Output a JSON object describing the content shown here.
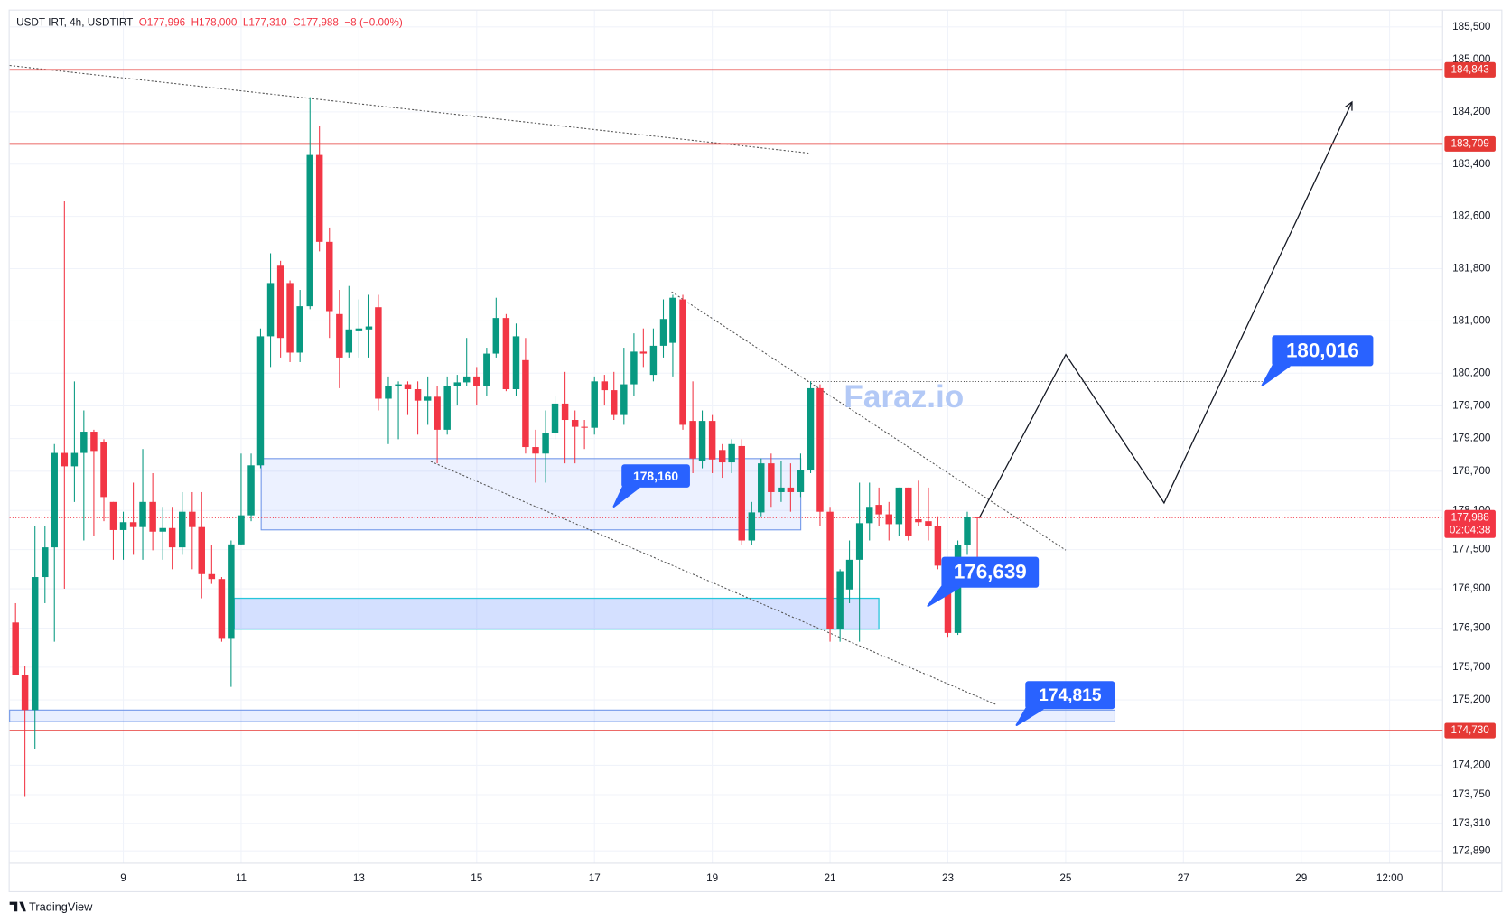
{
  "chart_data": {
    "type": "candlestick",
    "header": {
      "symbol": "USDT-IRT, 4h, USDTIRT",
      "values": [
        {
          "value": 177996,
          "label": "O177,996"
        },
        {
          "value": 178000,
          "label": "H178,000"
        },
        {
          "value": 177310,
          "label": "L177,310"
        },
        {
          "value": 177988,
          "label": "C177,988"
        }
      ],
      "change": {
        "value": -8,
        "label": "−8 (−0.00%)"
      }
    },
    "watermark": "Faraz.io",
    "brand": "TradingView",
    "up_color": "#089981",
    "down_color": "#f23645",
    "grid": true,
    "xlim": [
      7.07,
      31.4
    ],
    "xticks": [
      9,
      11,
      13,
      15,
      17,
      19,
      21,
      23,
      25,
      27,
      29,
      {
        "value": 30.5,
        "label": "12:00"
      }
    ],
    "ylim": [
      172700,
      185750
    ],
    "yticks": [
      {
        "value": 185500,
        "label": "185,500"
      },
      {
        "value": 185000,
        "label": "185,000"
      },
      {
        "value": 184200,
        "label": "184,200"
      },
      {
        "value": 183400,
        "label": "183,400"
      },
      {
        "value": 182600,
        "label": "182,600"
      },
      {
        "value": 181800,
        "label": "181,800"
      },
      {
        "value": 181000,
        "label": "181,000"
      },
      {
        "value": 180200,
        "label": "180,200"
      },
      {
        "value": 179700,
        "label": "179,700"
      },
      {
        "value": 179200,
        "label": "179,200"
      },
      {
        "value": 178700,
        "label": "178,700"
      },
      {
        "value": 178100,
        "label": "178,100"
      },
      {
        "value": 177500,
        "label": "177,500"
      },
      {
        "value": 176900,
        "label": "176,900"
      },
      {
        "value": 176300,
        "label": "176,300"
      },
      {
        "value": 175700,
        "label": "175,700"
      },
      {
        "value": 175200,
        "label": "175,200"
      },
      {
        "value": 174200,
        "label": "174,200"
      },
      {
        "value": 173750,
        "label": "173,750"
      },
      {
        "value": 173310,
        "label": "173,310"
      },
      {
        "value": 172890,
        "label": "172,890"
      }
    ],
    "x": [
      7.17,
      7.33,
      7.5,
      7.67,
      7.83,
      8,
      8.17,
      8.33,
      8.5,
      8.67,
      8.83,
      9,
      9.17,
      9.33,
      9.5,
      9.67,
      9.83,
      10,
      10.17,
      10.33,
      10.5,
      10.67,
      10.83,
      11,
      11.17,
      11.33,
      11.5,
      11.67,
      11.83,
      12,
      12.17,
      12.33,
      12.5,
      12.67,
      12.83,
      13,
      13.17,
      13.33,
      13.5,
      13.67,
      13.83,
      14,
      14.17,
      14.33,
      14.5,
      14.67,
      14.83,
      15,
      15.17,
      15.33,
      15.5,
      15.67,
      15.83,
      16,
      16.17,
      16.33,
      16.5,
      16.67,
      16.83,
      17,
      17.17,
      17.33,
      17.5,
      17.67,
      17.83,
      18,
      18.17,
      18.33,
      18.5,
      18.67,
      18.83,
      19,
      19.17,
      19.33,
      19.5,
      19.67,
      19.83,
      20,
      20.17,
      20.33,
      20.5,
      20.67,
      20.83,
      21,
      21.17,
      21.33,
      21.5,
      21.67,
      21.83,
      22,
      22.17,
      22.33,
      22.5,
      22.67,
      22.83,
      23,
      23.17,
      23.33,
      23.5
    ],
    "open": [
      176385,
      175575,
      175045,
      177080,
      177535,
      178980,
      178775,
      178980,
      179305,
      179145,
      178230,
      177800,
      177920,
      177845,
      178230,
      177775,
      177830,
      177535,
      178080,
      177845,
      177125,
      177050,
      176135,
      177580,
      178025,
      178790,
      180765,
      181845,
      181580,
      180515,
      181225,
      183540,
      182210,
      181105,
      180515,
      180855,
      180870,
      181210,
      179810,
      180000,
      180030,
      179955,
      179780,
      179840,
      179335,
      180000,
      180060,
      180150,
      180000,
      180500,
      181045,
      179955,
      180400,
      179070,
      178970,
      179290,
      179735,
      179485,
      179380,
      179365,
      180075,
      179940,
      179560,
      180030,
      180530,
      180175,
      180620,
      180665,
      181330,
      179470,
      178850,
      179470,
      179025,
      178835,
      179085,
      177640,
      178070,
      178820,
      178380,
      178450,
      178380,
      178715,
      179970,
      178080,
      176285,
      176890,
      177345,
      177905,
      178185,
      178040,
      177890,
      178450,
      177965,
      177935,
      177860,
      177095,
      176225,
      177565,
      177996
    ],
    "high": [
      176680,
      175720,
      177860,
      177860,
      179115,
      182830,
      180075,
      179630,
      179335,
      179190,
      178230,
      178080,
      178525,
      179040,
      178670,
      178155,
      178155,
      178380,
      178380,
      178380,
      177565,
      177080,
      177640,
      178970,
      178970,
      180885,
      182035,
      181920,
      181620,
      181475,
      184425,
      183980,
      182430,
      181475,
      181535,
      181330,
      181400,
      181400,
      180150,
      180075,
      180075,
      180075,
      180150,
      180000,
      180150,
      180175,
      180740,
      180295,
      180590,
      181355,
      181105,
      180960,
      180740,
      179335,
      179630,
      179850,
      180220,
      179630,
      179485,
      180150,
      180175,
      180220,
      180590,
      180810,
      180885,
      180885,
      181330,
      181400,
      181400,
      180075,
      179630,
      179560,
      179115,
      179190,
      179190,
      178230,
      178895,
      178970,
      178850,
      178820,
      178970,
      180075,
      180030,
      178155,
      177200,
      177640,
      178525,
      178525,
      178450,
      178230,
      178450,
      178450,
      178555,
      178450,
      178010,
      177345,
      177640,
      178080,
      178000
    ],
    "low": [
      175575,
      173715,
      174455,
      176680,
      176090,
      176900,
      178230,
      177640,
      177715,
      177935,
      177345,
      177345,
      177420,
      177345,
      177490,
      177345,
      177200,
      177420,
      177200,
      176755,
      176975,
      176090,
      175400,
      177565,
      177935,
      178745,
      180295,
      180440,
      180370,
      180370,
      181180,
      182065,
      180740,
      179970,
      180440,
      180440,
      180440,
      179630,
      179115,
      179190,
      179560,
      179260,
      179410,
      178820,
      179260,
      179705,
      180000,
      179705,
      179850,
      180440,
      179925,
      179850,
      178970,
      178525,
      178525,
      179190,
      178820,
      178820,
      179040,
      179260,
      179705,
      179485,
      179410,
      179850,
      180295,
      180075,
      180440,
      180150,
      179335,
      178670,
      178745,
      178670,
      178600,
      178670,
      177565,
      177565,
      178010,
      178155,
      178230,
      178080,
      178305,
      178670,
      177860,
      176090,
      176090,
      176680,
      176090,
      177640,
      177860,
      177640,
      177715,
      177640,
      177860,
      177640,
      177200,
      176165,
      176195,
      177420,
      177310
    ],
    "close": [
      175575,
      175045,
      177080,
      177535,
      178980,
      178775,
      178980,
      179305,
      179010,
      178305,
      177800,
      177920,
      177845,
      178230,
      177775,
      177830,
      177535,
      178080,
      177845,
      177125,
      177050,
      176135,
      177580,
      178025,
      178790,
      180765,
      181580,
      180740,
      180515,
      181225,
      183540,
      182210,
      181150,
      180440,
      180870,
      180885,
      180915,
      179810,
      180000,
      180030,
      179955,
      179780,
      179840,
      179335,
      180000,
      180060,
      180150,
      180000,
      180500,
      181045,
      179955,
      180765,
      179070,
      178970,
      179290,
      179735,
      179485,
      179380,
      179365,
      180075,
      179940,
      179560,
      180030,
      180530,
      180500,
      180620,
      181030,
      181355,
      179410,
      178895,
      179470,
      178880,
      178835,
      179115,
      177640,
      178070,
      178820,
      178380,
      178450,
      178380,
      178715,
      179970,
      178080,
      176285,
      177170,
      177345,
      177905,
      178155,
      178040,
      177890,
      178450,
      177715,
      177920,
      177860,
      177255,
      176225,
      177565,
      177996,
      177988
    ],
    "levels": [
      {
        "value": 184843,
        "label": "184,843"
      },
      {
        "value": 183709,
        "label": "183,709"
      },
      {
        "value": 174730,
        "label": "174,730"
      }
    ],
    "last_price": {
      "value": 177988,
      "label": "177,988",
      "countdown": "02:04:38"
    },
    "callouts": [
      {
        "value": 180016,
        "label": "180,016"
      },
      {
        "value": 178160,
        "label": "178,160"
      },
      {
        "value": 176639,
        "label": "176,639"
      },
      {
        "value": 174815,
        "label": "174,815"
      }
    ]
  }
}
